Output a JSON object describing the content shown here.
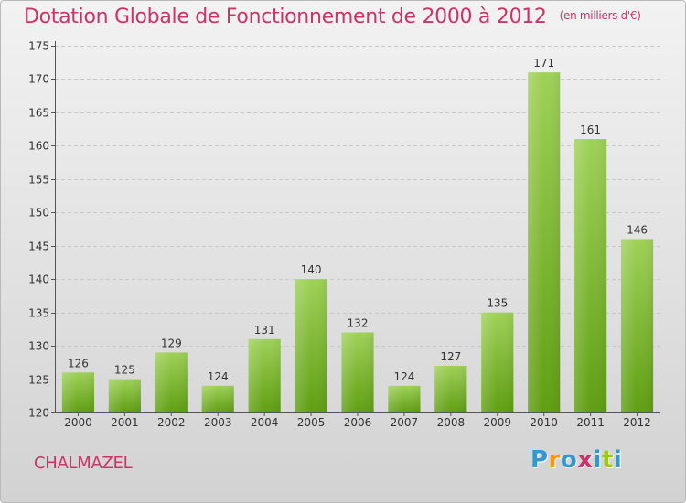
{
  "header": {
    "title": "Dotation Globale de Fonctionnement de 2000 à 2012",
    "subtitle": "(en milliers d'€)"
  },
  "footer": {
    "commune": "CHALMAZEL",
    "brand": {
      "letters": [
        "P",
        "r",
        "o",
        "x",
        "i",
        "t",
        "i"
      ],
      "colors": [
        "#3399cc",
        "#ff9900",
        "#3399cc",
        "#cc3366",
        "#3399cc",
        "#99cc00",
        "#3399cc"
      ]
    }
  },
  "colors": {
    "title": "#cc3366",
    "bar_light": "#9fd158",
    "bar_dark": "#5f9e12",
    "grid": "#c8c8c8"
  },
  "chart_data": {
    "type": "bar",
    "title": "Dotation Globale de Fonctionnement de 2000 à 2012",
    "subtitle": "(en milliers d'€)",
    "categories": [
      "2000",
      "2001",
      "2002",
      "2003",
      "2004",
      "2005",
      "2006",
      "2007",
      "2008",
      "2009",
      "2010",
      "2011",
      "2012"
    ],
    "values": [
      126,
      125,
      129,
      124,
      131,
      140,
      132,
      124,
      127,
      135,
      171,
      161,
      146
    ],
    "ylim": [
      120,
      175
    ],
    "yticks": [
      120,
      125,
      130,
      135,
      140,
      145,
      150,
      155,
      160,
      165,
      170,
      175
    ],
    "grid": true,
    "xlabel": "",
    "ylabel": ""
  }
}
